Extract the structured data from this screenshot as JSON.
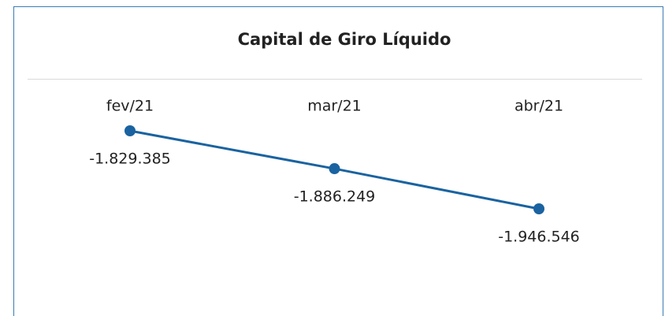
{
  "chart_data": {
    "type": "line",
    "title": "Capital de Giro Líquido",
    "categories": [
      "fev/21",
      "mar/21",
      "abr/21"
    ],
    "values": [
      -1829385,
      -1886249,
      -1946546
    ],
    "value_labels": [
      "-1.829.385",
      "-1.886.249",
      "-1.946.546"
    ],
    "color": "#1a63a0"
  }
}
